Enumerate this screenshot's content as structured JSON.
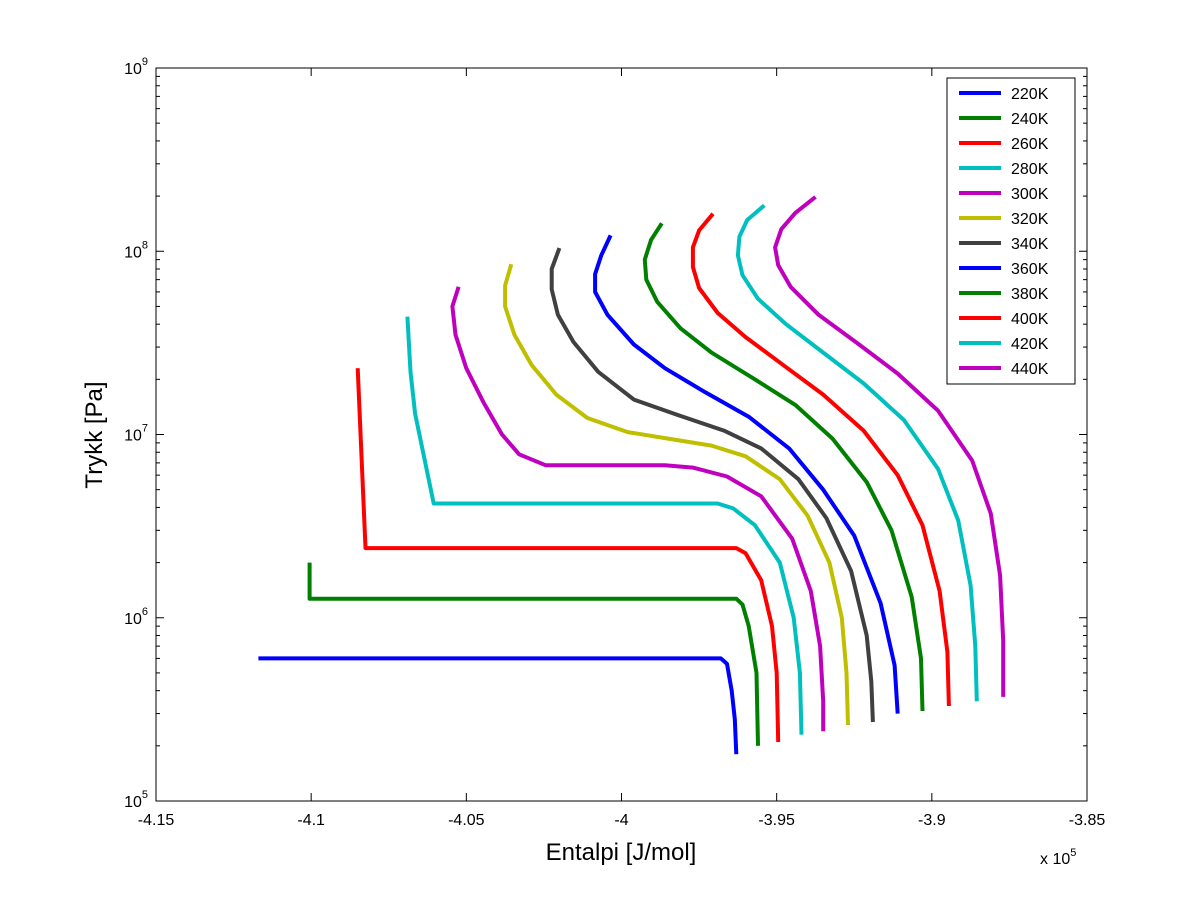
{
  "chart_data": {
    "type": "line",
    "title": "",
    "xlabel": "Entalpi [J/mol]",
    "ylabel": "Trykk [Pa]",
    "x_multiplier_label": "x 10",
    "x_multiplier_exponent": "5",
    "x_multiplier": 100000,
    "xlim": [
      -4.15,
      -3.85
    ],
    "ylim": [
      100000,
      1000000000
    ],
    "yscale": "log",
    "grid": false,
    "legend_position": "top-right",
    "x_ticks": [
      {
        "value": -4.15,
        "label": "-4.15"
      },
      {
        "value": -4.1,
        "label": "-4.1"
      },
      {
        "value": -4.05,
        "label": "-4.05"
      },
      {
        "value": -4.0,
        "label": "-4"
      },
      {
        "value": -3.95,
        "label": "-3.95"
      },
      {
        "value": -3.9,
        "label": "-3.9"
      },
      {
        "value": -3.85,
        "label": "-3.85"
      }
    ],
    "y_ticks": [
      {
        "value": 100000,
        "base": "10",
        "exp": "5"
      },
      {
        "value": 1000000,
        "base": "10",
        "exp": "6"
      },
      {
        "value": 10000000,
        "base": "10",
        "exp": "7"
      },
      {
        "value": 100000000,
        "base": "10",
        "exp": "8"
      },
      {
        "value": 1000000000,
        "base": "10",
        "exp": "9"
      }
    ],
    "series": [
      {
        "name": "220K",
        "color": "#0000ff",
        "points": [
          [
            -4.117,
            600000
          ],
          [
            -3.968,
            600000
          ],
          [
            -3.966,
            560000
          ],
          [
            -3.9645,
            400000
          ],
          [
            -3.9635,
            280000
          ],
          [
            -3.963,
            180000
          ]
        ]
      },
      {
        "name": "240K",
        "color": "#008000",
        "points": [
          [
            -4.1005,
            2000000
          ],
          [
            -4.1005,
            1270000
          ],
          [
            -3.963,
            1270000
          ],
          [
            -3.961,
            1180000
          ],
          [
            -3.959,
            900000
          ],
          [
            -3.9565,
            500000
          ],
          [
            -3.956,
            200000
          ]
        ]
      },
      {
        "name": "260K",
        "color": "#ff0000",
        "points": [
          [
            -4.085,
            23000000
          ],
          [
            -4.0825,
            2400000
          ],
          [
            -3.963,
            2400000
          ],
          [
            -3.96,
            2250000
          ],
          [
            -3.955,
            1600000
          ],
          [
            -3.9515,
            900000
          ],
          [
            -3.95,
            500000
          ],
          [
            -3.9495,
            210000
          ]
        ]
      },
      {
        "name": "280K",
        "color": "#00bfbf",
        "points": [
          [
            -4.069,
            44000000
          ],
          [
            -4.068,
            22000000
          ],
          [
            -4.0665,
            13000000
          ],
          [
            -4.0605,
            4200000
          ],
          [
            -3.969,
            4200000
          ],
          [
            -3.964,
            3950000
          ],
          [
            -3.957,
            3200000
          ],
          [
            -3.949,
            2000000
          ],
          [
            -3.9445,
            1000000
          ],
          [
            -3.9425,
            500000
          ],
          [
            -3.942,
            230000
          ]
        ]
      },
      {
        "name": "300K",
        "color": "#bf00bf",
        "points": [
          [
            -4.0525,
            64000000
          ],
          [
            -4.0545,
            50000000
          ],
          [
            -4.0535,
            35000000
          ],
          [
            -4.05,
            23000000
          ],
          [
            -4.0445,
            15000000
          ],
          [
            -4.0385,
            10000000
          ],
          [
            -4.033,
            7800000
          ],
          [
            -4.0245,
            6800000
          ],
          [
            -3.986,
            6800000
          ],
          [
            -3.977,
            6600000
          ],
          [
            -3.966,
            5900000
          ],
          [
            -3.955,
            4600000
          ],
          [
            -3.945,
            2700000
          ],
          [
            -3.939,
            1400000
          ],
          [
            -3.936,
            700000
          ],
          [
            -3.935,
            350000
          ],
          [
            -3.935,
            240000
          ]
        ]
      },
      {
        "name": "320K",
        "color": "#bfbf00",
        "points": [
          [
            -4.0355,
            85000000
          ],
          [
            -4.0375,
            65000000
          ],
          [
            -4.0375,
            50000000
          ],
          [
            -4.0345,
            35000000
          ],
          [
            -4.029,
            24000000
          ],
          [
            -4.021,
            16500000
          ],
          [
            -4.011,
            12300000
          ],
          [
            -3.998,
            10300000
          ],
          [
            -3.985,
            9500000
          ],
          [
            -3.971,
            8700000
          ],
          [
            -3.96,
            7600000
          ],
          [
            -3.949,
            5700000
          ],
          [
            -3.94,
            3600000
          ],
          [
            -3.933,
            2000000
          ],
          [
            -3.929,
            1000000
          ],
          [
            -3.9275,
            500000
          ],
          [
            -3.927,
            260000
          ]
        ]
      },
      {
        "name": "340K",
        "color": "#404040",
        "points": [
          [
            -4.02,
            104000000
          ],
          [
            -4.0225,
            80000000
          ],
          [
            -4.0225,
            62000000
          ],
          [
            -4.0205,
            45000000
          ],
          [
            -4.0155,
            32000000
          ],
          [
            -4.0075,
            22000000
          ],
          [
            -3.996,
            15500000
          ],
          [
            -3.982,
            12800000
          ],
          [
            -3.967,
            10500000
          ],
          [
            -3.955,
            8400000
          ],
          [
            -3.943,
            5700000
          ],
          [
            -3.934,
            3500000
          ],
          [
            -3.926,
            1800000
          ],
          [
            -3.921,
            800000
          ],
          [
            -3.9195,
            450000
          ],
          [
            -3.919,
            270000
          ]
        ]
      },
      {
        "name": "360K",
        "color": "#0000ff",
        "points": [
          [
            -4.0035,
            122000000
          ],
          [
            -4.0065,
            95000000
          ],
          [
            -4.0085,
            75000000
          ],
          [
            -4.0085,
            60000000
          ],
          [
            -4.0045,
            45000000
          ],
          [
            -3.996,
            31000000
          ],
          [
            -3.986,
            23000000
          ],
          [
            -3.973,
            17000000
          ],
          [
            -3.959,
            12500000
          ],
          [
            -3.946,
            8400000
          ],
          [
            -3.935,
            5000000
          ],
          [
            -3.925,
            2800000
          ],
          [
            -3.9165,
            1200000
          ],
          [
            -3.912,
            550000
          ],
          [
            -3.911,
            300000
          ]
        ]
      },
      {
        "name": "380K",
        "color": "#008000",
        "points": [
          [
            -3.987,
            142000000
          ],
          [
            -3.9905,
            115000000
          ],
          [
            -3.9925,
            90000000
          ],
          [
            -3.992,
            70000000
          ],
          [
            -3.9885,
            53000000
          ],
          [
            -3.981,
            38000000
          ],
          [
            -3.971,
            28000000
          ],
          [
            -3.958,
            20500000
          ],
          [
            -3.944,
            14500000
          ],
          [
            -3.932,
            9500000
          ],
          [
            -3.921,
            5500000
          ],
          [
            -3.913,
            3000000
          ],
          [
            -3.9065,
            1300000
          ],
          [
            -3.9035,
            600000
          ],
          [
            -3.903,
            310000
          ]
        ]
      },
      {
        "name": "400K",
        "color": "#ff0000",
        "points": [
          [
            -3.9705,
            160000000
          ],
          [
            -3.975,
            130000000
          ],
          [
            -3.977,
            105000000
          ],
          [
            -3.977,
            82000000
          ],
          [
            -3.975,
            63000000
          ],
          [
            -3.969,
            46000000
          ],
          [
            -3.96,
            34000000
          ],
          [
            -3.948,
            24000000
          ],
          [
            -3.935,
            16500000
          ],
          [
            -3.922,
            10500000
          ],
          [
            -3.911,
            6000000
          ],
          [
            -3.903,
            3200000
          ],
          [
            -3.8975,
            1400000
          ],
          [
            -3.895,
            650000
          ],
          [
            -3.8945,
            330000
          ]
        ]
      },
      {
        "name": "420K",
        "color": "#00bfbf",
        "points": [
          [
            -3.954,
            178000000
          ],
          [
            -3.9595,
            148000000
          ],
          [
            -3.962,
            120000000
          ],
          [
            -3.9625,
            95000000
          ],
          [
            -3.961,
            74000000
          ],
          [
            -3.956,
            55000000
          ],
          [
            -3.947,
            40000000
          ],
          [
            -3.935,
            28000000
          ],
          [
            -3.922,
            19000000
          ],
          [
            -3.909,
            12000000
          ],
          [
            -3.898,
            6500000
          ],
          [
            -3.8915,
            3400000
          ],
          [
            -3.8875,
            1500000
          ],
          [
            -3.886,
            700000
          ],
          [
            -3.8855,
            350000
          ]
        ]
      },
      {
        "name": "440K",
        "color": "#bf00bf",
        "points": [
          [
            -3.9375,
            198000000
          ],
          [
            -3.944,
            162000000
          ],
          [
            -3.9485,
            132000000
          ],
          [
            -3.9505,
            105000000
          ],
          [
            -3.9495,
            84000000
          ],
          [
            -3.9455,
            64000000
          ],
          [
            -3.9365,
            45000000
          ],
          [
            -3.924,
            31500000
          ],
          [
            -3.911,
            21500000
          ],
          [
            -3.898,
            13500000
          ],
          [
            -3.887,
            7200000
          ],
          [
            -3.881,
            3700000
          ],
          [
            -3.878,
            1700000
          ],
          [
            -3.877,
            750000
          ],
          [
            -3.877,
            370000
          ]
        ]
      }
    ]
  }
}
